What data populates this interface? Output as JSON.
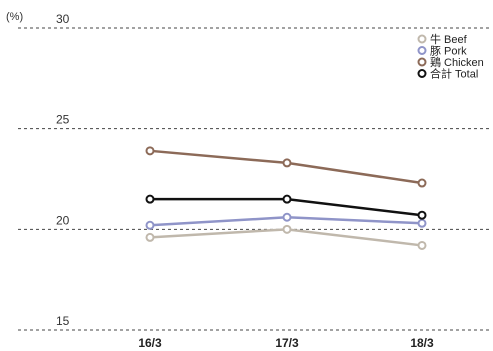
{
  "chart_data": {
    "type": "line",
    "unit_label": "(%)",
    "categories": [
      "16/3",
      "17/3",
      "18/3"
    ],
    "ylim": [
      15,
      30
    ],
    "yticks": [
      "30",
      "25",
      "20",
      "15"
    ],
    "grid": "horizontal dashed",
    "legend_position": "top-right",
    "series": [
      {
        "name": "牛 Beef",
        "color": "#c0b8ac",
        "values": [
          19.6,
          20.0,
          19.2
        ]
      },
      {
        "name": "豚 Pork",
        "color": "#8f94c8",
        "values": [
          20.2,
          20.6,
          20.3
        ]
      },
      {
        "name": "鶏 Chicken",
        "color": "#8c6a58",
        "values": [
          23.9,
          23.3,
          22.3
        ]
      },
      {
        "name": "合計 Total",
        "color": "#111111",
        "values": [
          21.5,
          21.5,
          20.7
        ]
      }
    ]
  }
}
